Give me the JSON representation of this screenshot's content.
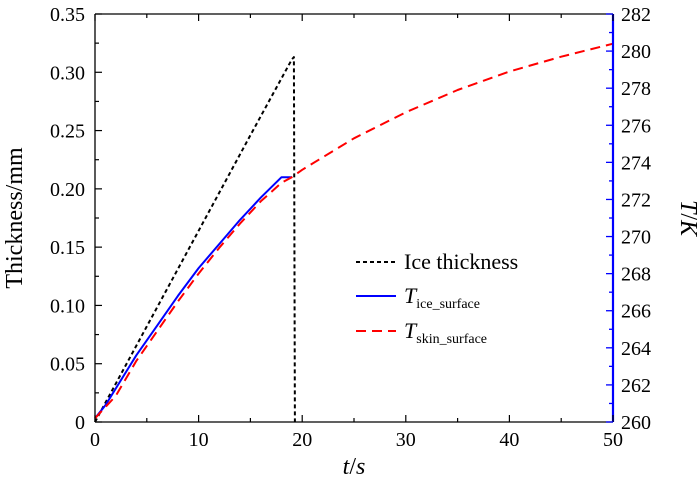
{
  "chart_data": {
    "type": "line",
    "title": "",
    "xlabel": "t/s",
    "ylabel_left": "Thickness/mm",
    "ylabel_right": "T/K",
    "xlim": [
      0,
      50
    ],
    "ylim_left": [
      0,
      0.35
    ],
    "ylim_right": [
      260,
      282
    ],
    "x_ticks": [
      "0",
      "10",
      "20",
      "30",
      "40",
      "50"
    ],
    "y_left_ticks": [
      "0",
      "0.05",
      "0.10",
      "0.15",
      "0.20",
      "0.25",
      "0.30",
      "0.35"
    ],
    "y_right_ticks": [
      "260",
      "262",
      "264",
      "266",
      "268",
      "270",
      "272",
      "274",
      "276",
      "278",
      "280",
      "282"
    ],
    "right_axis_color": "#0000ff",
    "legend_position": "center-right",
    "series": [
      {
        "name": "Ice thickness",
        "name_main": "Ice thickness",
        "name_sub": "",
        "axis": "left",
        "style": "dotted",
        "color": "#000000",
        "x": [
          0,
          5,
          10,
          15,
          19,
          19.2,
          19.3
        ],
        "y": [
          0,
          0.082,
          0.164,
          0.246,
          0.311,
          0.313,
          0
        ]
      },
      {
        "name": "T_ice_surface",
        "name_main": "T",
        "name_sub": "ice_surface",
        "axis": "right",
        "style": "solid",
        "color": "#0000ff",
        "x": [
          0,
          1,
          2,
          4,
          6,
          8,
          10,
          12,
          14,
          16,
          18,
          18.5,
          19
        ],
        "y": [
          260.2,
          260.9,
          261.8,
          263.6,
          265.2,
          266.8,
          268.3,
          269.6,
          270.9,
          272.1,
          273.2,
          273.2,
          273.2
        ]
      },
      {
        "name": "T_skin_surface",
        "name_main": "T",
        "name_sub": "skin_surface",
        "axis": "right",
        "style": "dashed",
        "color": "#ff0000",
        "x": [
          0,
          2,
          4,
          6,
          8,
          10,
          12,
          14,
          16,
          18,
          19,
          20,
          25,
          30,
          35,
          40,
          45,
          50
        ],
        "y": [
          260.2,
          261.4,
          263.3,
          264.9,
          266.5,
          268.0,
          269.4,
          270.7,
          271.9,
          272.9,
          273.2,
          273.6,
          275.3,
          276.7,
          277.9,
          278.9,
          279.7,
          280.4
        ]
      }
    ]
  }
}
